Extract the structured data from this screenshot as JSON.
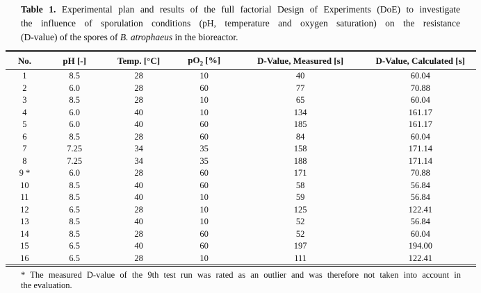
{
  "page": {
    "background_color": "#fcfcfc",
    "text_color": "#161616",
    "rule_color": "#1a1a1a"
  },
  "caption": {
    "label": "Table 1.",
    "line1_rest": " Experimental plan and results of the full factorial Design of Experiments (DoE) to investigate",
    "line2": "the influence of sporulation conditions (pH, temperature and oxygen saturation) on the resistance",
    "line3_pre": "(D-value) of the spores of ",
    "line3_italic": "B. atrophaeus",
    "line3_post": " in the bioreactor."
  },
  "table": {
    "columns": [
      {
        "label": "No."
      },
      {
        "label": "pH [-]"
      },
      {
        "label": "Temp. [°C]"
      },
      {
        "label_pre": "pO",
        "label_sub": "2",
        "label_post": " [%]"
      },
      {
        "label": "D-Value, Measured [s]"
      },
      {
        "label": "D-Value, Calculated [s]"
      }
    ],
    "rows": [
      [
        "1",
        "8.5",
        "28",
        "10",
        "40",
        "60.04"
      ],
      [
        "2",
        "6.0",
        "28",
        "60",
        "77",
        "70.88"
      ],
      [
        "3",
        "8.5",
        "28",
        "10",
        "65",
        "60.04"
      ],
      [
        "4",
        "6.0",
        "40",
        "10",
        "134",
        "161.17"
      ],
      [
        "5",
        "6.0",
        "40",
        "60",
        "185",
        "161.17"
      ],
      [
        "6",
        "8.5",
        "28",
        "60",
        "84",
        "60.04"
      ],
      [
        "7",
        "7.25",
        "34",
        "35",
        "158",
        "171.14"
      ],
      [
        "8",
        "7.25",
        "34",
        "35",
        "188",
        "171.14"
      ],
      [
        "9 *",
        "6.0",
        "28",
        "60",
        "171",
        "70.88"
      ],
      [
        "10",
        "8.5",
        "40",
        "60",
        "58",
        "56.84"
      ],
      [
        "11",
        "8.5",
        "40",
        "10",
        "59",
        "56.84"
      ],
      [
        "12",
        "6.5",
        "28",
        "10",
        "125",
        "122.41"
      ],
      [
        "13",
        "8.5",
        "40",
        "10",
        "52",
        "56.84"
      ],
      [
        "14",
        "8.5",
        "28",
        "60",
        "52",
        "60.04"
      ],
      [
        "15",
        "6.5",
        "40",
        "60",
        "197",
        "194.00"
      ],
      [
        "16",
        "6.5",
        "28",
        "10",
        "111",
        "122.41"
      ]
    ]
  },
  "footnote": {
    "line1": "* The measured D-value of the 9th test run was rated as an outlier and was therefore not taken into account in",
    "line2": "the evaluation."
  }
}
